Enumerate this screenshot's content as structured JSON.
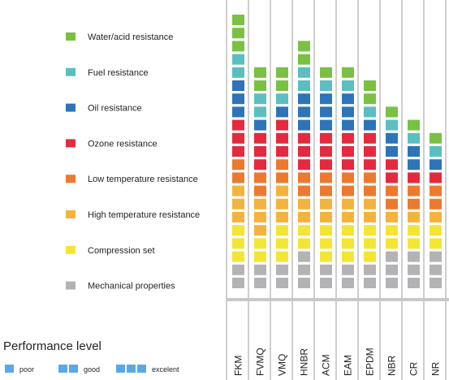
{
  "chart_data": {
    "type": "bar",
    "subtype": "stacked-unit-blocks",
    "categories": [
      "FKM",
      "FVMQ",
      "VMQ",
      "HNBR",
      "ACM",
      "EAM",
      "EPDM",
      "NBR",
      "CR",
      "NR"
    ],
    "series": [
      {
        "name": "Mechanical properties",
        "color": "#b3b3b5",
        "values": [
          2,
          2,
          2,
          3,
          2,
          2,
          2,
          3,
          3,
          3
        ]
      },
      {
        "name": "Compression set",
        "color": "#f4e535",
        "values": [
          3,
          2,
          3,
          2,
          3,
          3,
          3,
          2,
          2,
          2
        ]
      },
      {
        "name": "High temperature resistance",
        "color": "#f3b33d",
        "values": [
          3,
          3,
          3,
          2,
          2,
          2,
          2,
          1,
          1,
          1
        ]
      },
      {
        "name": "Low temperature resistance",
        "color": "#ec7a2e",
        "values": [
          2,
          2,
          2,
          2,
          2,
          2,
          2,
          2,
          2,
          2
        ]
      },
      {
        "name": "Ozone resistance",
        "color": "#e42a3f",
        "values": [
          3,
          3,
          3,
          3,
          3,
          3,
          3,
          2,
          1,
          1
        ]
      },
      {
        "name": "Oil resistance",
        "color": "#2e74b8",
        "values": [
          3,
          1,
          1,
          3,
          3,
          3,
          1,
          2,
          2,
          1
        ]
      },
      {
        "name": "Fuel resistance",
        "color": "#5bbfc0",
        "values": [
          2,
          2,
          1,
          2,
          1,
          1,
          1,
          1,
          1,
          1
        ]
      },
      {
        "name": "Water/acid resistance",
        "color": "#7ac143",
        "values": [
          3,
          2,
          2,
          2,
          1,
          1,
          2,
          1,
          1,
          1
        ]
      }
    ],
    "legend_position": "left",
    "legend_order": [
      "Water/acid resistance",
      "Fuel resistance",
      "Oil resistance",
      "Ozone resistance",
      "Low temperature resistance",
      "High temperature resistance",
      "Compression set",
      "Mechanical properties"
    ],
    "performance_level": {
      "title": "Performance level",
      "levels": [
        {
          "label": "poor",
          "blocks": 1
        },
        {
          "label": "good",
          "blocks": 2
        },
        {
          "label": "excelent",
          "blocks": 3
        }
      ],
      "block_color": "#5aa9e6"
    }
  }
}
